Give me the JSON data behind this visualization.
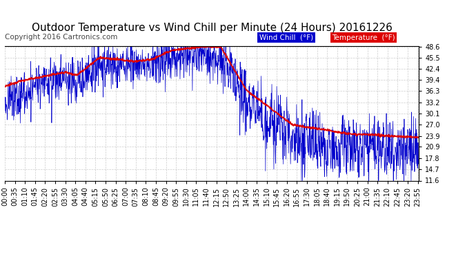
{
  "title": "Outdoor Temperature vs Wind Chill per Minute (24 Hours) 20161226",
  "copyright": "Copyright 2016 Cartronics.com",
  "yticks": [
    11.6,
    14.7,
    17.8,
    20.9,
    23.9,
    27.0,
    30.1,
    33.2,
    36.3,
    39.4,
    42.4,
    45.5,
    48.6
  ],
  "ylim": [
    11.6,
    48.6
  ],
  "bg_color": "#ffffff",
  "plot_bg_color": "#ffffff",
  "grid_color": "#aaaaaa",
  "temp_color": "#dd0000",
  "windchill_color": "#0000cc",
  "legend_wc_bg": "#0000cc",
  "legend_temp_bg": "#dd0000",
  "legend_text_color": "#ffffff",
  "title_fontsize": 11,
  "copyright_fontsize": 7.5,
  "tick_fontsize": 7,
  "legend_fontsize": 7.5,
  "num_minutes": 1440,
  "xtick_interval": 35
}
